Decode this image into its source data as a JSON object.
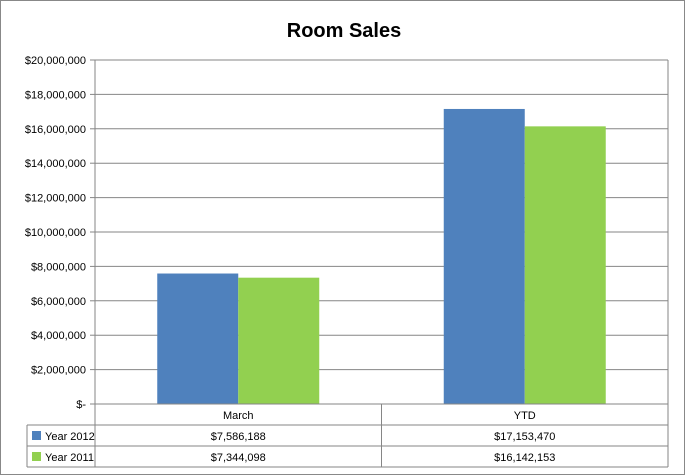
{
  "chart_data": {
    "type": "bar",
    "title": "Room Sales",
    "categories": [
      "March",
      "YTD"
    ],
    "series": [
      {
        "name": "Year 2012",
        "color": "#4F81BD",
        "values": [
          7586188,
          17153470
        ],
        "labels": [
          "$7,586,188",
          "$17,153,470"
        ]
      },
      {
        "name": "Year 2011",
        "color": "#92D050",
        "values": [
          7344098,
          16142153
        ],
        "labels": [
          "$7,344,098",
          "$16,142,153"
        ]
      }
    ],
    "ylim": [
      0,
      20000000
    ],
    "yticks": [
      0,
      2000000,
      4000000,
      6000000,
      8000000,
      10000000,
      12000000,
      14000000,
      16000000,
      18000000,
      20000000
    ],
    "ytick_labels": [
      "$-",
      "$2,000,000",
      "$4,000,000",
      "$6,000,000",
      "$8,000,000",
      "$10,000,000",
      "$12,000,000",
      "$14,000,000",
      "$16,000,000",
      "$18,000,000",
      "$20,000,000"
    ],
    "grid": true,
    "legend": "data-table"
  }
}
